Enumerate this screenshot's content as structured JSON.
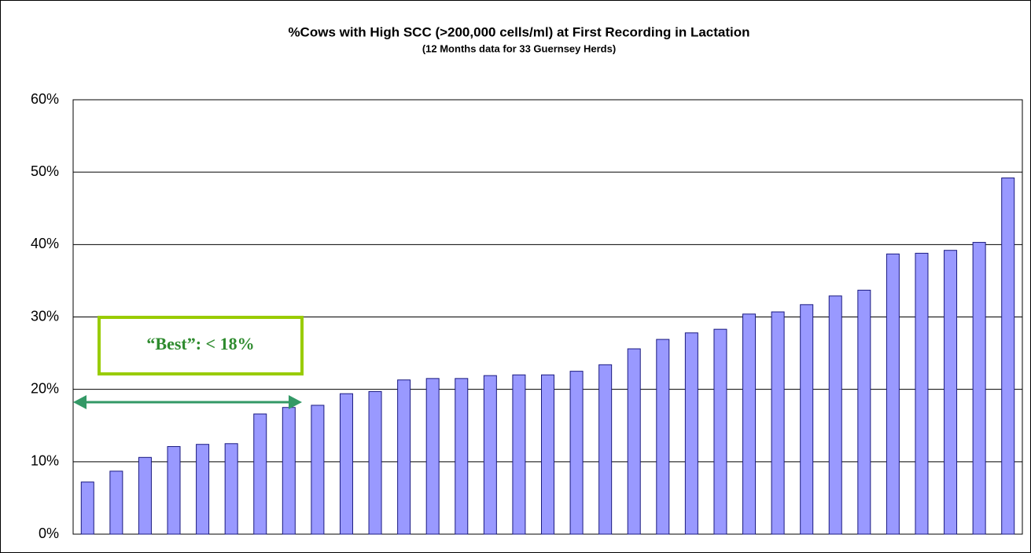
{
  "chart_data": {
    "type": "bar",
    "title": "%Cows with High SCC (>200,000 cells/ml) at First Recording in Lactation",
    "subtitle": "(12 Months data for 33 Guernsey Herds)",
    "annotation": "“Best”:  < 18%",
    "categories": [
      null,
      null,
      null,
      null,
      null,
      null,
      null,
      null,
      null,
      null,
      null,
      null,
      null,
      null,
      null,
      null,
      null,
      null,
      null,
      null,
      null,
      null,
      null,
      null,
      null,
      null,
      null,
      null,
      null,
      null,
      null,
      null,
      null
    ],
    "values": [
      7.2,
      8.7,
      10.6,
      12.1,
      12.4,
      12.5,
      16.6,
      17.5,
      17.8,
      19.4,
      19.7,
      21.3,
      21.5,
      21.5,
      21.9,
      22.0,
      22.0,
      22.5,
      23.4,
      25.6,
      26.9,
      27.8,
      28.3,
      30.4,
      30.7,
      31.7,
      32.9,
      33.7,
      38.7,
      38.8,
      39.2,
      40.3,
      49.2
    ],
    "color": "#9999ff",
    "ylim": [
      0,
      60
    ],
    "yticks": [
      {
        "value": 0,
        "label": "0%"
      },
      {
        "value": 10,
        "label": "10%"
      },
      {
        "value": 20,
        "label": "20%"
      },
      {
        "value": 30,
        "label": "30%"
      },
      {
        "value": 40,
        "label": "40%"
      },
      {
        "value": 50,
        "label": "50%"
      },
      {
        "value": 60,
        "label": "60%"
      }
    ],
    "grid": true
  }
}
